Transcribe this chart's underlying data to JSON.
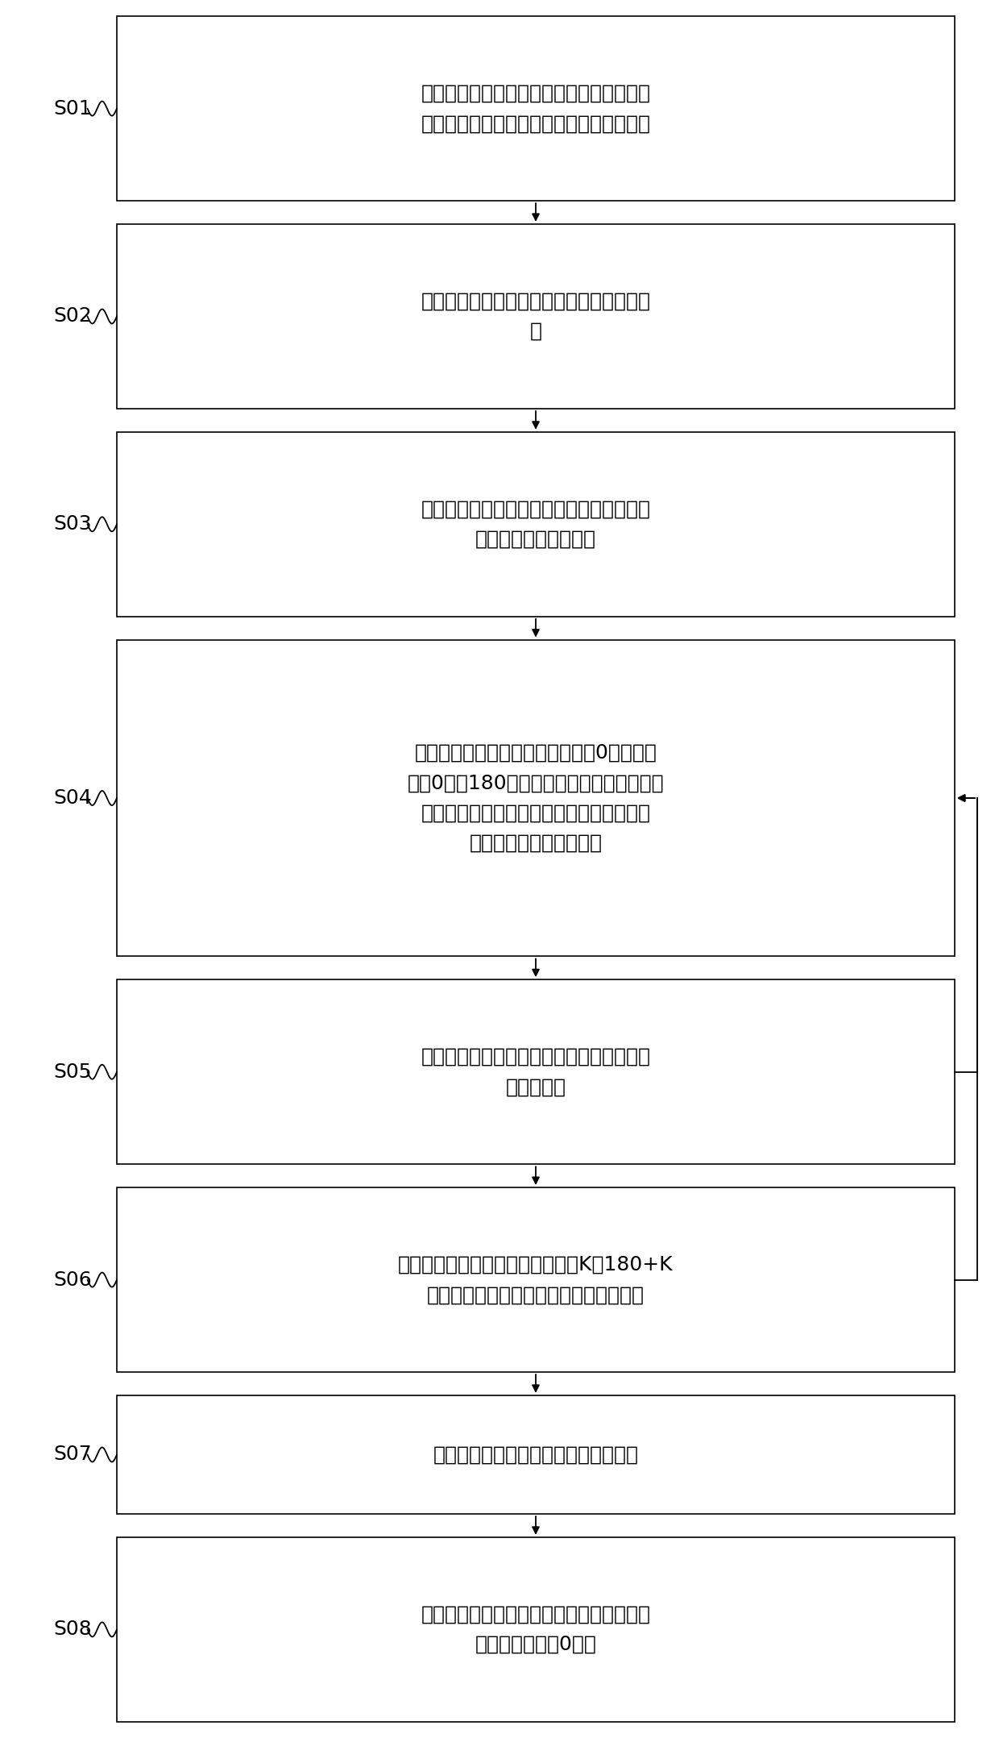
{
  "background_color": "#ffffff",
  "box_bg": "#ffffff",
  "box_edge": "#000000",
  "box_edge_width": 1.2,
  "arrow_color": "#000000",
  "label_color": "#000000",
  "font_size": 18,
  "figsize": [
    12.4,
    21.56
  ],
  "steps": [
    {
      "id": "S01",
      "text": "以相控阵雷达天线正面为基准，标定相控阵\n雷达天线各通道序号，建立通道的映射关系",
      "lines": 2,
      "back_arrow": false
    },
    {
      "id": "S02",
      "text": "配置近场校准失网的频率参数，输入通道间\n距",
      "lines": 2,
      "back_arrow": false
    },
    {
      "id": "S03",
      "text": "根据天线单元编号顺序逐一加电，并设置其\n他天线单元为断电状态",
      "lines": 2,
      "back_arrow": false
    },
    {
      "id": "S04",
      "text": "设置天线单元的某通道幅度保持为0，相位分\n别为0度和180度，该天线单元其他通道为极\n点，采集该通道的实部和虚部，求得第一实\n时相位和第一实时幅度。",
      "lines": 4,
      "back_arrow": true
    },
    {
      "id": "S05",
      "text": "求得天线单元所有通道的第一实时幅度和第\n一实时相位",
      "lines": 2,
      "back_arrow": false
    },
    {
      "id": "S06",
      "text": "保持该通道幅度不变，相位分别为K和180+K\n度，求得第二实时相位和第二实时幅度。",
      "lines": 2,
      "back_arrow": true
    },
    {
      "id": "S07",
      "text": "相位度数逐次增加，累积第二实时相位",
      "lines": 1,
      "back_arrow": false
    },
    {
      "id": "S08",
      "text": "将第一实时相位反打至雷达天线通道，将各\n通道相位补偿至0度。",
      "lines": 2,
      "back_arrow": false
    }
  ],
  "back_arrows": [
    {
      "from_idx": 4,
      "to_idx": 3
    },
    {
      "from_idx": 5,
      "to_idx": 3
    }
  ]
}
